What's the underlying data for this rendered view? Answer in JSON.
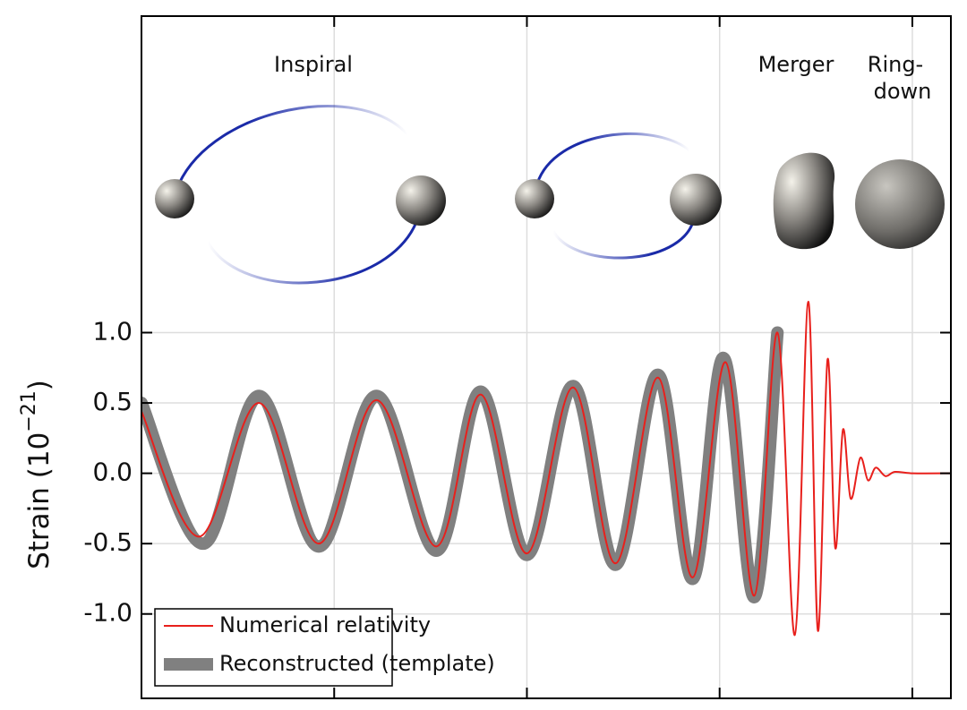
{
  "chart_data": {
    "type": "line",
    "ylabel": {
      "text": "Strain (10",
      "exponent": "−21",
      "close": ")"
    },
    "annotations": [
      "Inspiral",
      "Merger",
      "Ring-",
      "down"
    ],
    "xlim": [
      0,
      4.2
    ],
    "xticks": [
      1,
      2,
      3,
      4
    ],
    "ylim": [
      -1.6,
      3.25
    ],
    "yticks": [
      {
        "value": 1,
        "label": "1.0"
      },
      {
        "value": 0.5,
        "label": "0.5"
      },
      {
        "value": 0,
        "label": "0.0"
      },
      {
        "value": -0.5,
        "label": "-0.5"
      },
      {
        "value": -1,
        "label": "-1.0"
      }
    ],
    "grid": true,
    "legend": "lower left",
    "series": [
      {
        "name": "Reconstructed (template)",
        "color": "#808080",
        "width": 14,
        "x": [
          0,
          0.32,
          0.61,
          0.92,
          1.22,
          1.53,
          1.76,
          2.0,
          2.24,
          2.46,
          2.68,
          2.86,
          3.02,
          3.18,
          3.3
        ],
        "values": [
          0.5,
          -0.5,
          0.55,
          -0.52,
          0.55,
          -0.55,
          0.58,
          -0.58,
          0.62,
          -0.65,
          0.7,
          -0.75,
          0.82,
          -0.88,
          1.0
        ]
      },
      {
        "name": "Numerical relativity",
        "color": "#e8201c",
        "width": 2,
        "x": [
          0,
          0.3,
          0.61,
          0.92,
          1.22,
          1.53,
          1.76,
          2.0,
          2.24,
          2.46,
          2.68,
          2.86,
          3.03,
          3.18,
          3.3,
          3.39,
          3.46,
          3.51,
          3.56,
          3.6,
          3.64,
          3.68,
          3.73,
          3.77,
          3.81,
          3.86,
          3.91,
          4.0,
          4.2
        ],
        "values": [
          0.44,
          -0.45,
          0.5,
          -0.5,
          0.52,
          -0.52,
          0.56,
          -0.57,
          0.61,
          -0.64,
          0.68,
          -0.74,
          0.79,
          -0.87,
          1.0,
          -1.15,
          1.22,
          -1.12,
          0.81,
          -0.53,
          0.31,
          -0.18,
          0.11,
          -0.05,
          0.04,
          -0.02,
          0.01,
          0,
          0
        ]
      }
    ]
  }
}
